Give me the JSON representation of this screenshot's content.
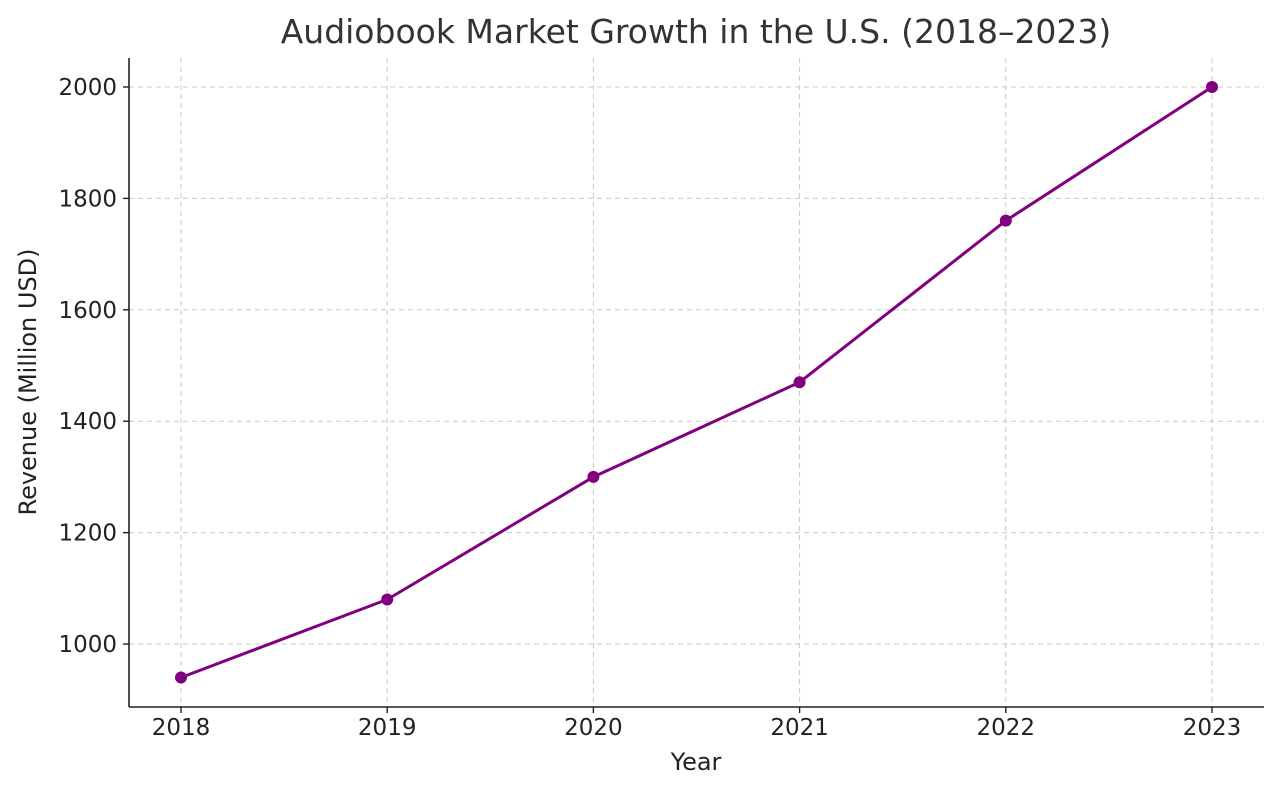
{
  "chart_data": {
    "type": "line",
    "title": "Audiobook Market Growth in the U.S. (2018–2023)",
    "xlabel": "Year",
    "ylabel": "Revenue (Million USD)",
    "categories": [
      "2018",
      "2019",
      "2020",
      "2021",
      "2022",
      "2023"
    ],
    "series": [
      {
        "name": "Revenue",
        "values": [
          940,
          1080,
          1300,
          1470,
          1760,
          2000
        ],
        "color": "#800080"
      }
    ],
    "y_ticks": [
      1000,
      1200,
      1400,
      1600,
      1800,
      2000
    ],
    "ylim": [
      887,
      2052
    ],
    "grid": true,
    "legend": "none"
  }
}
